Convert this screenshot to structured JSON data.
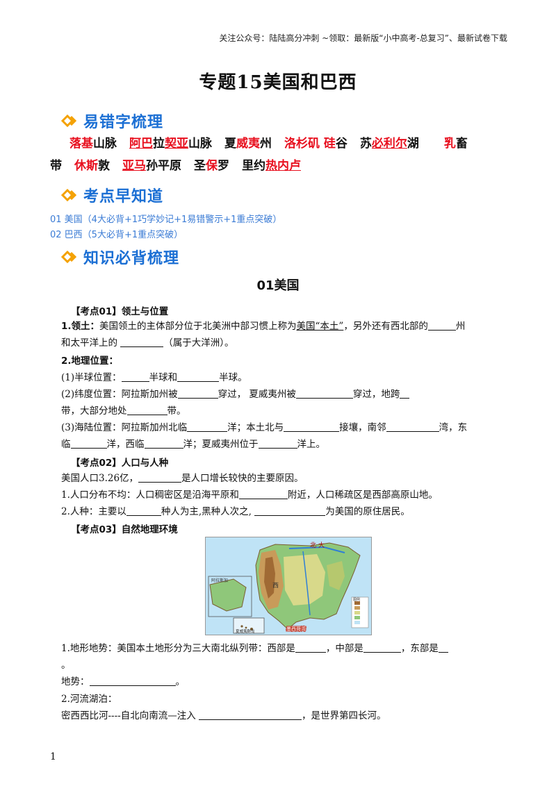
{
  "header_note": "关注公众号：陆陆高分冲刺 ~领取：最新版“小中高考-总复习”、最新试卷下载",
  "title": "专题15美国和巴西",
  "sections": {
    "typo": "易错字梳理",
    "overview": "考点早知道",
    "knowledge": "知识必背梳理"
  },
  "typo_line1": [
    {
      "t": "落基",
      "red": true
    },
    {
      "t": "山脉",
      "red": false
    },
    {
      "gap": true
    },
    {
      "t": "阿巴",
      "red": true,
      "ul": true
    },
    {
      "t": "拉",
      "red": false
    },
    {
      "t": "契亚",
      "red": true,
      "ul": true
    },
    {
      "t": "山脉",
      "red": false
    },
    {
      "gap": true
    },
    {
      "t": "夏",
      "red": false
    },
    {
      "t": "威夷",
      "red": true
    },
    {
      "t": "州",
      "red": false
    },
    {
      "gap": true
    },
    {
      "t": "洛杉矶",
      "red": true
    },
    {
      "t": " ",
      "red": false
    },
    {
      "t": "硅",
      "red": true
    },
    {
      "t": "谷",
      "red": false
    },
    {
      "gap": true
    },
    {
      "t": "苏",
      "red": false
    },
    {
      "t": "必利尔",
      "red": true,
      "ul": true
    },
    {
      "t": "湖",
      "red": false
    },
    {
      "gap": true
    },
    {
      "gap": true
    },
    {
      "t": "乳",
      "red": true
    },
    {
      "t": "畜",
      "red": false
    }
  ],
  "typo_line2": [
    {
      "t": "带",
      "red": false
    },
    {
      "gap": true
    },
    {
      "t": "休斯",
      "red": true
    },
    {
      "t": "敦",
      "red": false
    },
    {
      "gap": true
    },
    {
      "t": "亚马",
      "red": true,
      "ul": true
    },
    {
      "t": "孙平原",
      "red": false
    },
    {
      "gap": true
    },
    {
      "t": "圣",
      "red": false
    },
    {
      "t": "保",
      "red": true
    },
    {
      "t": "罗",
      "red": false
    },
    {
      "gap": true
    },
    {
      "t": "里约",
      "red": false
    },
    {
      "t": "热内卢",
      "red": true,
      "ul": true
    }
  ],
  "overview_items": [
    "01 美国（4大必背+1巧学妙记+1易错警示+1重点突破）",
    "02 巴西（5大必背+1重点突破）"
  ],
  "section_title": "01美国",
  "kp1": {
    "title": "【考点01】领土与位置",
    "l1a": "1.领土：",
    "l1b": "美国领土的主体部分位于北美洲中部习惯上称为",
    "l1c": "美国“本土”",
    "l1d": "，另外还有西北部的",
    "l1e": "州",
    "l2a": "和太平洋上的 ",
    "l2b": "（属于大洋洲）。",
    "geo": "2.地理位置：",
    "h1": "(1)半球位置：",
    "h2": "半球和",
    "h3": "半球。",
    "w1": "(2)纬度位置：阿拉斯加州被",
    "w2": "穿过，  夏威夷州被",
    "w3": "穿过，地跨",
    "w4": "带，大部分地处",
    "w5": "带。",
    "s1": "(3)海陆位置：阿拉斯加州北临",
    "s2": "洋；本土北与",
    "s3": "接壤，南邻",
    "s4": "湾，东",
    "s5": "临",
    "s6": "洋，西临",
    "s7": "洋；夏威夷州位于",
    "s8": "洋上。"
  },
  "kp2": {
    "title": "【考点02】人口与人种",
    "p1a": "美国人口3.26亿，",
    "p1b": "是人口增长较快的主要原因。",
    "p2a": "1.人口分布不均：人口稠密区是沿海平原和",
    "p2b": "附近，人口稀疏区是西部高原山地。",
    "p3a": "2.人种：主要以",
    "p3b": "种人为主,黑种人次之,",
    "p3c": "为美国的原住居民。"
  },
  "kp3": {
    "title": "【考点03】自然地理环境",
    "map_labels": {
      "north": "北",
      "big": "大",
      "west_sea": "西",
      "gulf": "墨西哥湾",
      "inset": "阿拉斯加",
      "hawaii": "夏威夷群岛",
      "legend": "图例"
    },
    "t1a": "1.地形地势：美国本土地形分为三大南北纵列带：西部是",
    "t1b": "，中部是",
    "t1c": "，东部是",
    "t1d": "。",
    "t2a": "地势：",
    "t2b": "。",
    "r1": "2.河流湖泊：",
    "r2a": "密西西比河----自北向南流—注入 ",
    "r2b": "，是世界第四长河。"
  },
  "page_number": "1",
  "colors": {
    "accent": "#1b6fd4",
    "red": "#e8101f",
    "icon": "#f4a100"
  }
}
